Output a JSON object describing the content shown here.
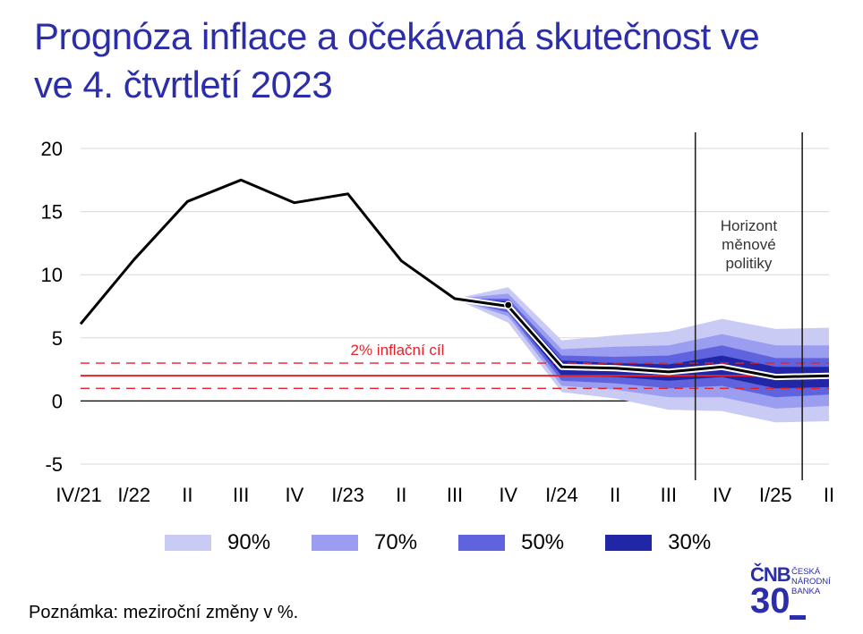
{
  "title_lines": [
    "Prognóza inflace a očekávaná skutečnost ve",
    "ve 4. čtvrtletí 2023"
  ],
  "note": "Poznámka: meziroční změny v %.",
  "logo": {
    "mark": "ČNB",
    "number": "30",
    "name_lines": [
      "ČESKÁ",
      "NÁRODNÍ",
      "BANKA"
    ]
  },
  "colors": {
    "title": "#2b2ea8",
    "band90": "#c9cbf5",
    "band70": "#9a9df0",
    "band50": "#5f63de",
    "band30": "#2126a6",
    "target": "#e1242b",
    "line": "#000000"
  },
  "chart_data": {
    "type": "area",
    "categories": [
      "IV/21",
      "I/22",
      "II",
      "III",
      "IV",
      "I/23",
      "II",
      "III",
      "IV",
      "I/24",
      "II",
      "III",
      "IV",
      "I/25",
      "II"
    ],
    "ylim": [
      -5,
      20
    ],
    "yticks": [
      -5,
      0,
      5,
      10,
      15,
      20
    ],
    "grid": true,
    "series": [
      {
        "values": [
          6.1,
          11.2,
          15.8,
          17.5,
          15.7,
          16.4,
          11.1,
          8.1,
          7.5,
          2.7,
          2.6,
          2.3,
          2.7,
          1.9,
          2.0
        ]
      }
    ],
    "outturn_point": {
      "category": "IV",
      "value": 7.6
    },
    "fan": {
      "start_index": 7,
      "bands": [
        {
          "name": "90%",
          "lower": [
            8.1,
            6.2,
            0.7,
            0.2,
            -0.7,
            -0.8,
            -1.7,
            -1.6
          ],
          "upper": [
            8.1,
            9.0,
            4.8,
            5.2,
            5.5,
            6.5,
            5.7,
            5.8
          ]
        },
        {
          "name": "70%",
          "lower": [
            8.1,
            6.7,
            1.2,
            0.9,
            0.3,
            0.3,
            -0.6,
            -0.4
          ],
          "upper": [
            8.1,
            8.5,
            4.1,
            4.3,
            4.4,
            5.3,
            4.4,
            4.4
          ]
        },
        {
          "name": "50%",
          "lower": [
            8.1,
            7.0,
            1.6,
            1.4,
            1.0,
            1.2,
            0.3,
            0.5
          ],
          "upper": [
            8.1,
            8.1,
            3.6,
            3.5,
            3.6,
            4.4,
            3.4,
            3.4
          ]
        },
        {
          "name": "30%",
          "lower": [
            8.1,
            7.2,
            2.0,
            1.9,
            1.6,
            1.9,
            1.0,
            1.1
          ],
          "upper": [
            8.1,
            7.9,
            3.2,
            3.0,
            2.9,
            3.6,
            2.7,
            2.7
          ]
        }
      ]
    },
    "target": {
      "value": 2,
      "lower": 1,
      "upper": 3,
      "label": "2% inflační cíl"
    },
    "horizon": {
      "label_lines": [
        "Horizont",
        "měnové",
        "politiky"
      ],
      "from_category_index": 11.5,
      "to_category_index": 13.5
    },
    "legend": {
      "placement": "bottom",
      "entries": [
        "90%",
        "70%",
        "50%",
        "30%"
      ]
    }
  }
}
